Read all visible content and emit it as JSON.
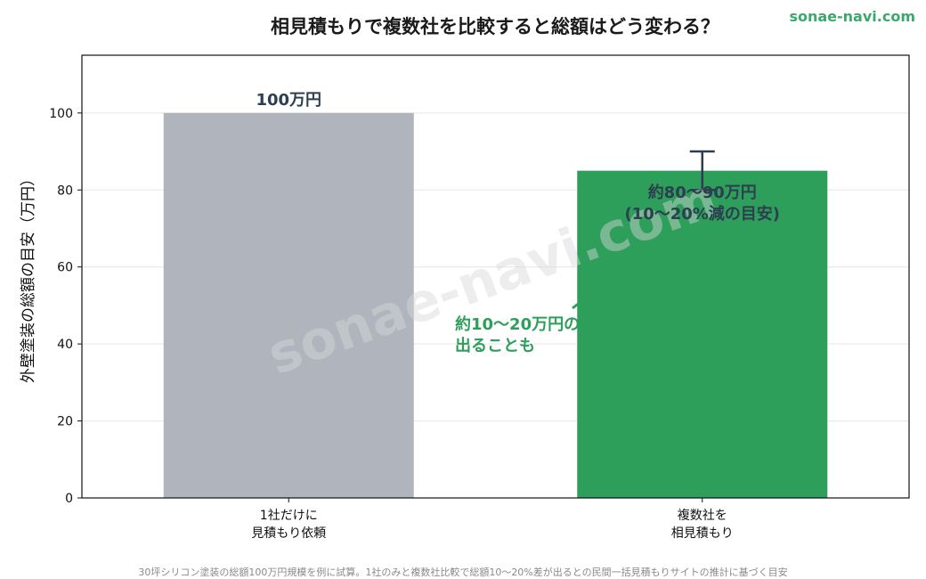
{
  "brand": "sonae-navi.com",
  "watermark": "sonae-navi.com",
  "footnote": "30坪シリコン塗装の総額100万円規模を例に試算。1社のみと複数社比較で総額10〜20%差が出るとの民間一括見積もりサイトの推計に基づく目安",
  "colors": {
    "gray_bar": "#b0b5bd",
    "green_bar": "#2e9e5b",
    "annotation": "#2e9e5b",
    "label_dark": "#2c3e50",
    "brand": "#3aa96b"
  },
  "chart_data": {
    "type": "bar",
    "title": "相見積もりで複数社を比較すると総額はどう変わる？",
    "xlabel": "",
    "ylabel": "外壁塗装の総額の目安（万円）",
    "ylim": [
      0,
      115
    ],
    "yticks": [
      0,
      20,
      40,
      60,
      80,
      100
    ],
    "grid": true,
    "categories": [
      [
        "1社だけに",
        "見積もり依頼"
      ],
      [
        "複数社を",
        "相見積もり"
      ]
    ],
    "values": [
      100,
      85
    ],
    "error_range": [
      null,
      [
        80,
        90
      ]
    ],
    "bar_labels": [
      [
        "100万円"
      ],
      [
        "約80〜90万円",
        "(10〜20%減の目安)"
      ]
    ],
    "annotation": {
      "lines": [
        "約10〜20万円の差が",
        "出ることも"
      ]
    }
  }
}
